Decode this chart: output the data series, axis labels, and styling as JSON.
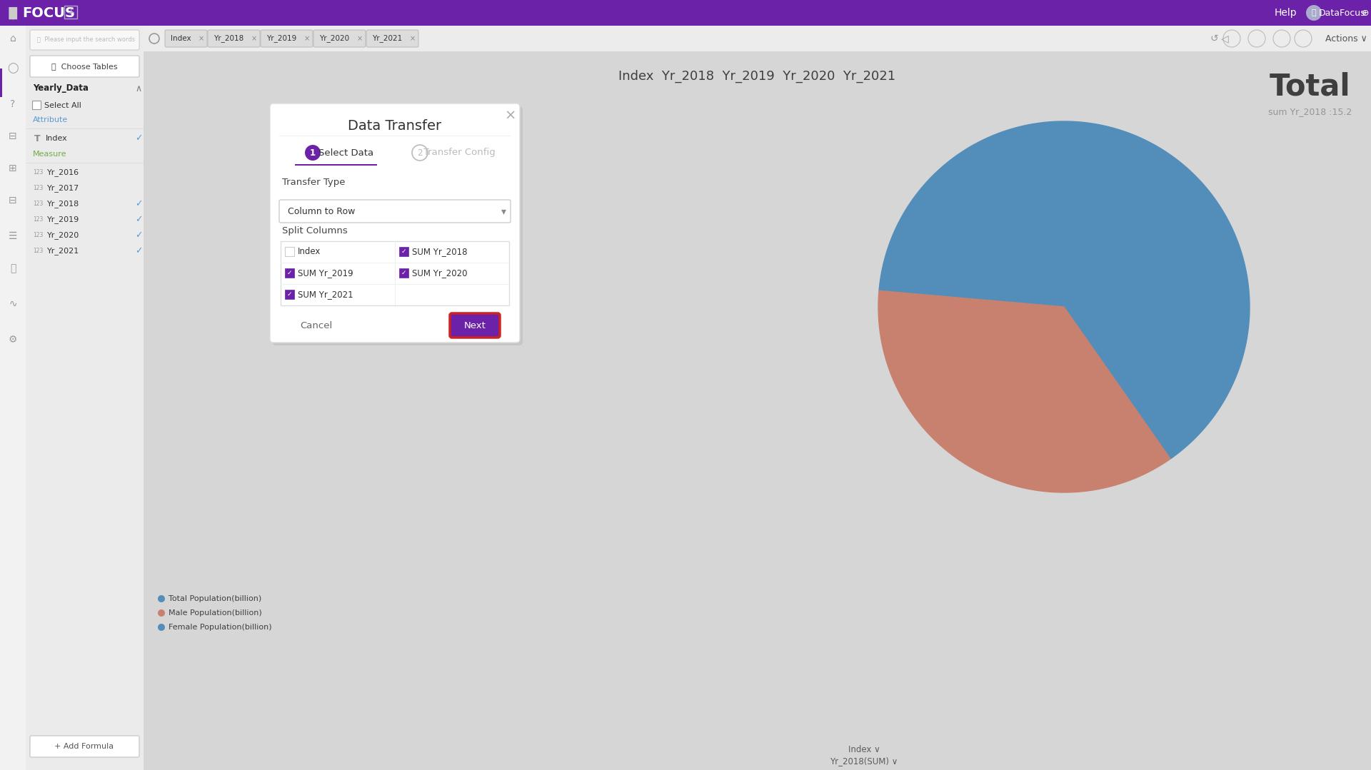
{
  "bg_color": "#d4d4d4",
  "top_bar_color": "#6b21a8",
  "logo_text": "FOCUS",
  "sidebar_bg": "#f0f0f0",
  "left_panel_bg": "#e8e8e8",
  "dialog_title": "Data Transfer",
  "dialog_bg": "#ffffff",
  "transfer_type_label": "Transfer Type",
  "transfer_type_value": "Column to Row",
  "split_columns_label": "Split Columns",
  "col1_items": [
    "Index",
    "SUM Yr_2019",
    "SUM Yr_2021"
  ],
  "col2_items": [
    "SUM Yr_2018",
    "SUM Yr_2020"
  ],
  "col1_checked": [
    false,
    true,
    true
  ],
  "col2_checked": [
    true,
    true
  ],
  "cancel_btn_text": "Cancel",
  "next_btn_text": "Next",
  "next_btn_color": "#6b21a8",
  "accent_color": "#6b21a8",
  "yearly_data_label": "Yearly_Data",
  "select_all_label": "Select All",
  "attribute_label": "Attribute",
  "measure_label": "Measure",
  "left_items_attr": [
    "Index"
  ],
  "left_items_measure": [
    "Yr_2016",
    "Yr_2017",
    "Yr_2018",
    "Yr_2019",
    "Yr_2020",
    "Yr_2021"
  ],
  "left_items_checked": [
    false,
    false,
    true,
    true,
    true,
    true
  ],
  "search_placeholder": "Please input the search words",
  "choose_tables_btn": "Choose Tables",
  "top_tags": [
    "Index",
    "Yr_2018",
    "Yr_2019",
    "Yr_2020",
    "Yr_2021"
  ],
  "chart_title": "Index  Yr_2018  Yr_2019  Yr_2020  Yr_2021",
  "actions_label": "Actions",
  "total_label": "Total",
  "sum_label": "sum Yr_2018 :15.2",
  "pie_blue": "#4a90c4",
  "pie_salmon": "#d4806a",
  "legend_items": [
    "Total Population(billion)",
    "Male Population(billion)",
    "Female Population(billion)"
  ],
  "legend_colors": [
    "#4a90c4",
    "#d4806a",
    "#4a90c4"
  ],
  "bottom_label1": "Index",
  "bottom_label2": "Yr_2018(SUM)"
}
